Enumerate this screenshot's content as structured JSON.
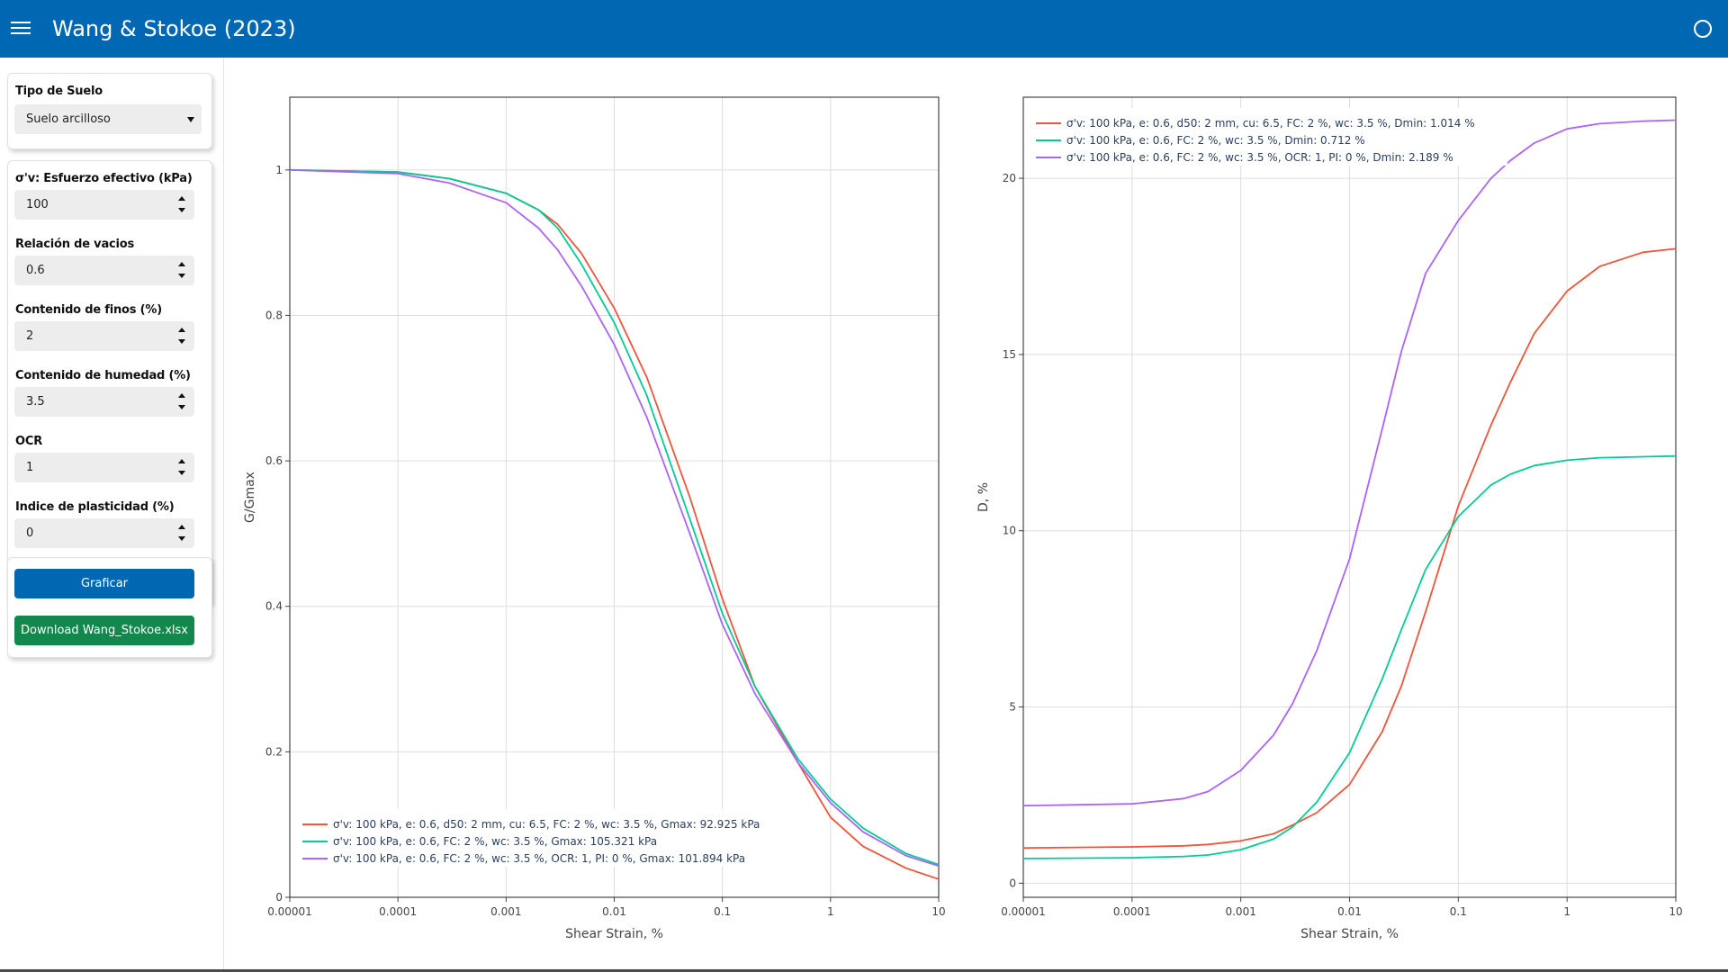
{
  "header": {
    "title": "Wang & Stokoe (2023)",
    "menu_icon": "hamburger-icon",
    "status_icon": "circle-icon"
  },
  "sidebar": {
    "soil_type_label": "Tipo de Suelo",
    "soil_type_value": "Suelo arcilloso",
    "fields": [
      {
        "label": "σ'v: Esfuerzo efectivo (kPa)",
        "value": "100"
      },
      {
        "label": "Relación de vacios",
        "value": "0.6"
      },
      {
        "label": "Contenido de finos (%)",
        "value": "2"
      },
      {
        "label": "Contenido de humedad (%)",
        "value": "3.5"
      },
      {
        "label": "OCR",
        "value": "1"
      },
      {
        "label": "Indice de plasticidad (%)",
        "value": "0"
      }
    ],
    "plot_button": "Graficar",
    "download_button": "Download Wang_Stokoe.xlsx"
  },
  "chart_data": [
    {
      "type": "line",
      "xlabel": "Shear Strain, %",
      "ylabel": "G/Gmax",
      "xscale": "log",
      "xlim": [
        1e-05,
        10
      ],
      "ylim": [
        0,
        1.1
      ],
      "x_tick_labels": [
        "0.00001",
        "0.0001",
        "0.001",
        "0.01",
        "0.1",
        "1",
        "10"
      ],
      "y_ticks": [
        0,
        0.2,
        0.4,
        0.6,
        0.8,
        1
      ],
      "y_tick_labels": [
        "0",
        "0.2",
        "0.4",
        "0.6",
        "0.8",
        "1"
      ],
      "grid": true,
      "legend_position": "bottom-left",
      "x": [
        1e-05,
        0.0001,
        0.0003,
        0.001,
        0.002,
        0.003,
        0.005,
        0.01,
        0.02,
        0.05,
        0.1,
        0.2,
        0.5,
        1,
        2,
        5,
        10
      ],
      "series": [
        {
          "name": "σ'v: 100 kPa, e: 0.6, d50: 2 mm, cu: 6.5, FC: 2 %, wc: 3.5 %, Gmax: 92.925 kPa",
          "color": "#ef553b",
          "values": [
            1.0,
            0.997,
            0.988,
            0.968,
            0.945,
            0.925,
            0.885,
            0.81,
            0.715,
            0.55,
            0.41,
            0.29,
            0.185,
            0.11,
            0.07,
            0.04,
            0.025
          ]
        },
        {
          "name": "σ'v: 100 kPa, e: 0.6, FC: 2 %, wc: 3.5 %, Gmax: 105.321 kPa",
          "color": "#00cc96",
          "values": [
            1.0,
            0.997,
            0.988,
            0.968,
            0.945,
            0.92,
            0.87,
            0.79,
            0.69,
            0.52,
            0.39,
            0.29,
            0.19,
            0.135,
            0.095,
            0.06,
            0.045
          ]
        },
        {
          "name": "σ'v: 100 kPa, e: 0.6, FC: 2 %, wc: 3.5 %, OCR: 1, PI: 0 %, Gmax: 101.894 kPa",
          "color": "#ab63fa",
          "values": [
            1.0,
            0.995,
            0.982,
            0.955,
            0.92,
            0.89,
            0.84,
            0.76,
            0.66,
            0.5,
            0.375,
            0.28,
            0.185,
            0.13,
            0.09,
            0.057,
            0.043
          ]
        }
      ]
    },
    {
      "type": "line",
      "xlabel": "Shear Strain, %",
      "ylabel": "D, %",
      "xscale": "log",
      "xlim": [
        1e-05,
        10
      ],
      "ylim": [
        -0.4,
        22.3
      ],
      "x_tick_labels": [
        "0.00001",
        "0.0001",
        "0.001",
        "0.01",
        "0.1",
        "1",
        "10"
      ],
      "y_ticks": [
        0,
        5,
        10,
        15,
        20
      ],
      "y_tick_labels": [
        "0",
        "5",
        "10",
        "15",
        "20"
      ],
      "grid": true,
      "legend_position": "top-left",
      "x": [
        1e-05,
        0.0001,
        0.0003,
        0.0005,
        0.001,
        0.002,
        0.003,
        0.005,
        0.01,
        0.02,
        0.03,
        0.05,
        0.1,
        0.2,
        0.3,
        0.5,
        1,
        2,
        5,
        10
      ],
      "series": [
        {
          "name": "σ'v: 100 kPa, e: 0.6, d50: 2 mm, cu: 6.5, FC: 2 %, wc: 3.5 %, Dmin: 1.014 %",
          "color": "#ef553b",
          "values": [
            1.0,
            1.03,
            1.06,
            1.1,
            1.2,
            1.4,
            1.65,
            2.0,
            2.8,
            4.3,
            5.6,
            7.7,
            10.7,
            13.0,
            14.2,
            15.6,
            16.8,
            17.5,
            17.9,
            18.0
          ]
        },
        {
          "name": "σ'v: 100 kPa, e: 0.6, FC: 2 %, wc: 3.5 %, Dmin: 0.712 %",
          "color": "#00cc96",
          "values": [
            0.7,
            0.72,
            0.76,
            0.8,
            0.95,
            1.25,
            1.6,
            2.3,
            3.7,
            5.8,
            7.2,
            8.9,
            10.4,
            11.3,
            11.6,
            11.85,
            12.0,
            12.07,
            12.1,
            12.12
          ]
        },
        {
          "name": "σ'v: 100 kPa, e: 0.6, FC: 2 %, wc: 3.5 %, OCR: 1, PI: 0 %, Dmin: 2.189 %",
          "color": "#ab63fa",
          "values": [
            2.2,
            2.25,
            2.4,
            2.6,
            3.2,
            4.2,
            5.1,
            6.6,
            9.2,
            12.9,
            15.1,
            17.3,
            18.8,
            20.0,
            20.5,
            21.0,
            21.4,
            21.55,
            21.62,
            21.65
          ]
        }
      ]
    }
  ]
}
